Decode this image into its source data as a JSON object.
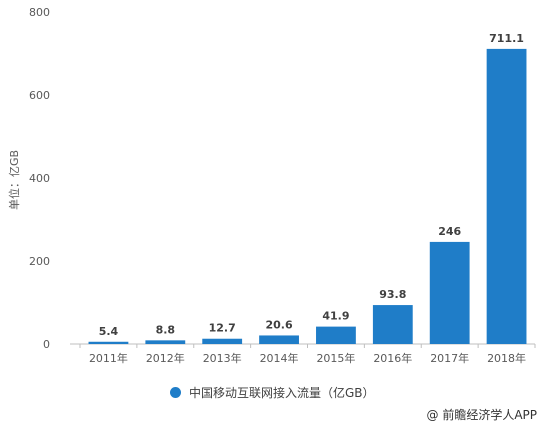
{
  "chart_data": {
    "type": "bar",
    "categories": [
      "2011年",
      "2012年",
      "2013年",
      "2014年",
      "2015年",
      "2016年",
      "2017年",
      "2018年"
    ],
    "values": [
      5.4,
      8.8,
      12.7,
      20.6,
      41.9,
      93.8,
      246,
      711.1
    ],
    "value_labels": [
      "5.4",
      "8.8",
      "12.7",
      "20.6",
      "41.9",
      "93.8",
      "246",
      "711.1"
    ],
    "ylabel": "单位：亿GB",
    "ylim": [
      0,
      800
    ],
    "yticks": [
      0,
      200,
      400,
      600,
      800
    ],
    "bar_color": "#1f7dc8",
    "grid": false,
    "legend_position": "bottom",
    "series": [
      {
        "name": "中国移动互联网接入流量（亿GB）"
      }
    ]
  },
  "credit": "@ 前瞻经济学人APP"
}
